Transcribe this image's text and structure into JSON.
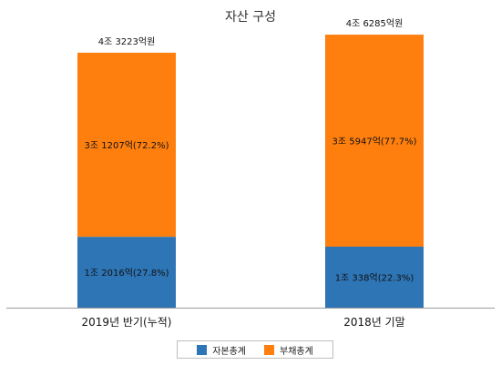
{
  "chart_data": {
    "type": "bar",
    "stacked": true,
    "title": "자산 구성",
    "categories": [
      "2019년 반기(누적)",
      "2018년 기말"
    ],
    "totals": [
      43223,
      46285
    ],
    "total_labels": [
      "4조 3223억원",
      "4조 6285억원"
    ],
    "series": [
      {
        "name": "자본총계",
        "color": "#2E75B6",
        "values": [
          12016,
          10338
        ],
        "labels": [
          "1조 2016억(27.8%)",
          "1조 338억(22.3%)"
        ]
      },
      {
        "name": "부채총계",
        "color": "#FF7F0E",
        "values": [
          31207,
          35947
        ],
        "labels": [
          "3조 1207억(72.2%)",
          "3조 5947억(77.7%)"
        ]
      }
    ],
    "ylim": [
      0,
      50000
    ],
    "grid": false,
    "legend_position": "bottom"
  }
}
